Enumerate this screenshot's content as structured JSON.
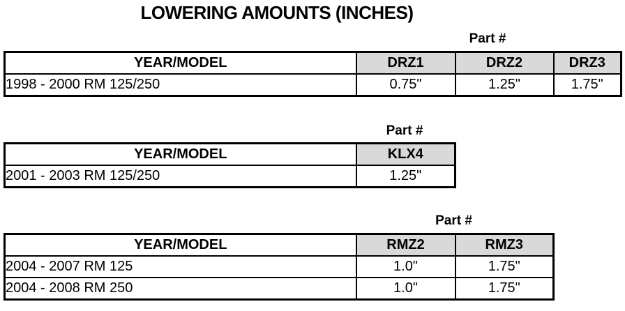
{
  "page": {
    "title": "LOWERING AMOUNTS (INCHES)"
  },
  "colors": {
    "header_fill": "#d9d9d9",
    "border": "#000000",
    "background": "#ffffff",
    "text": "#000000"
  },
  "tables": [
    {
      "part_label": "Part #",
      "year_model_header": "YEAR/MODEL",
      "part_columns": [
        "DRZ1",
        "DRZ2",
        "DRZ3"
      ],
      "rows": [
        {
          "year_model": "1998 - 2000 RM 125/250",
          "values": [
            "0.75\"",
            "1.25\"",
            "1.75\""
          ]
        }
      ]
    },
    {
      "part_label": "Part #",
      "year_model_header": "YEAR/MODEL",
      "part_columns": [
        "KLX4"
      ],
      "rows": [
        {
          "year_model": "2001 - 2003 RM 125/250",
          "values": [
            "1.25\""
          ]
        }
      ]
    },
    {
      "part_label": "Part #",
      "year_model_header": "YEAR/MODEL",
      "part_columns": [
        "RMZ2",
        "RMZ3"
      ],
      "rows": [
        {
          "year_model": "2004 - 2007 RM 125",
          "values": [
            "1.0\"",
            "1.75\""
          ]
        },
        {
          "year_model": "2004 - 2008 RM 250",
          "values": [
            "1.0\"",
            "1.75\""
          ]
        }
      ]
    }
  ]
}
